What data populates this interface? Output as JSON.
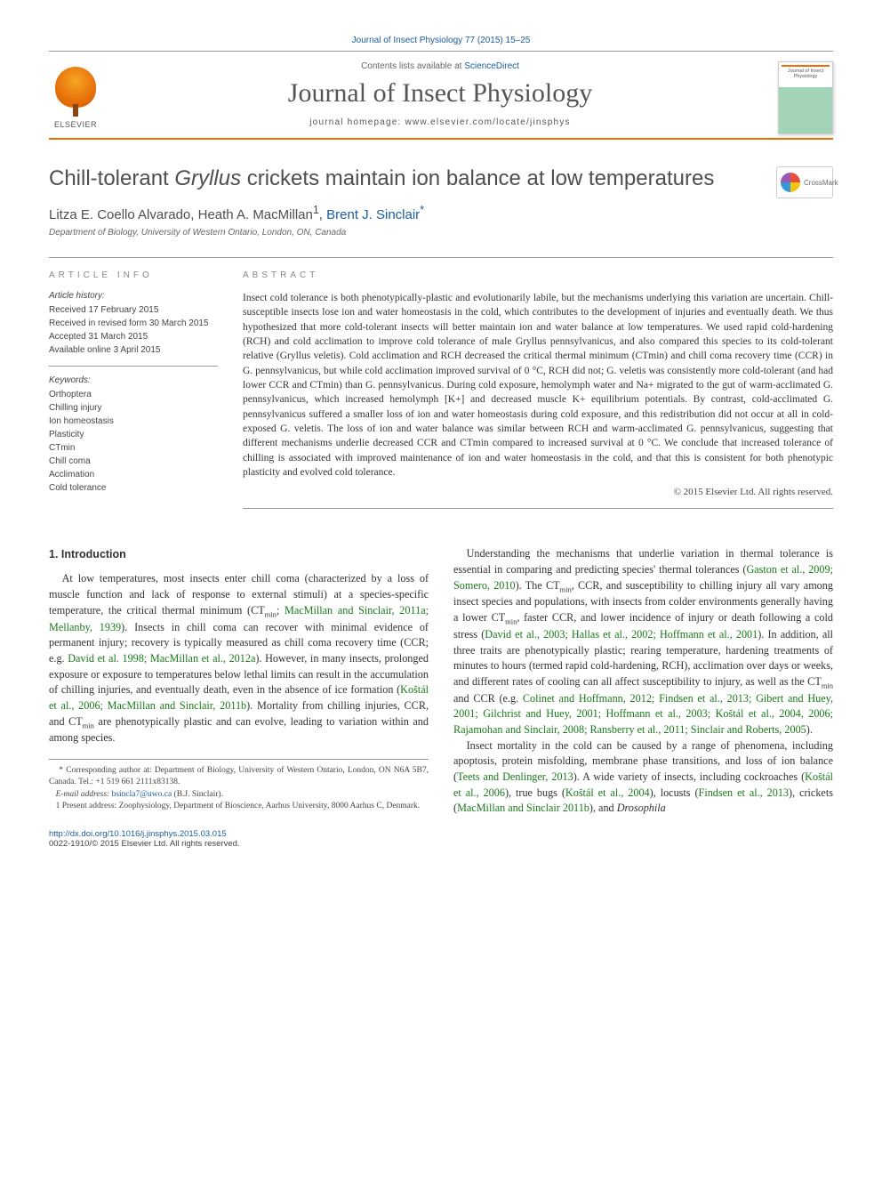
{
  "citation": "Journal of Insect Physiology 77 (2015) 15–25",
  "banner": {
    "contents_prefix": "Contents lists available at ",
    "sciencedirect": "ScienceDirect",
    "journal_name": "Journal of Insect Physiology",
    "homepage_prefix": "journal homepage: ",
    "homepage_url": "www.elsevier.com/locate/jinsphys",
    "publisher": "ELSEVIER",
    "cover_title": "Journal of Insect Physiology"
  },
  "crossmark": "CrossMark",
  "title": {
    "pre": "Chill-tolerant ",
    "italic": "Gryllus",
    "post": " crickets maintain ion balance at low temperatures"
  },
  "authors": [
    {
      "name": "Litza E. Coello Alvarado",
      "marks": ""
    },
    {
      "name": "Heath A. MacMillan",
      "marks": "1"
    },
    {
      "name": "Brent J. Sinclair",
      "marks": "*",
      "link": true
    }
  ],
  "affiliation": "Department of Biology, University of Western Ontario, London, ON, Canada",
  "article_info": {
    "heading": "ARTICLE INFO",
    "history_label": "Article history:",
    "history": [
      "Received 17 February 2015",
      "Received in revised form 30 March 2015",
      "Accepted 31 March 2015",
      "Available online 3 April 2015"
    ],
    "keywords_label": "Keywords:",
    "keywords": [
      "Orthoptera",
      "Chilling injury",
      "Ion homeostasis",
      "Plasticity",
      "CTmin",
      "Chill coma",
      "Acclimation",
      "Cold tolerance"
    ]
  },
  "abstract": {
    "heading": "ABSTRACT",
    "text": "Insect cold tolerance is both phenotypically-plastic and evolutionarily labile, but the mechanisms underlying this variation are uncertain. Chill-susceptible insects lose ion and water homeostasis in the cold, which contributes to the development of injuries and eventually death. We thus hypothesized that more cold-tolerant insects will better maintain ion and water balance at low temperatures. We used rapid cold-hardening (RCH) and cold acclimation to improve cold tolerance of male Gryllus pennsylvanicus, and also compared this species to its cold-tolerant relative (Gryllus veletis). Cold acclimation and RCH decreased the critical thermal minimum (CTmin) and chill coma recovery time (CCR) in G. pennsylvanicus, but while cold acclimation improved survival of 0 °C, RCH did not; G. veletis was consistently more cold-tolerant (and had lower CCR and CTmin) than G. pennsylvanicus. During cold exposure, hemolymph water and Na+ migrated to the gut of warm-acclimated G. pennsylvanicus, which increased hemolymph [K+] and decreased muscle K+ equilibrium potentials. By contrast, cold-acclimated G. pennsylvanicus suffered a smaller loss of ion and water homeostasis during cold exposure, and this redistribution did not occur at all in cold-exposed G. veletis. The loss of ion and water balance was similar between RCH and warm-acclimated G. pennsylvanicus, suggesting that different mechanisms underlie decreased CCR and CTmin compared to increased survival at 0 °C. We conclude that increased tolerance of chilling is associated with improved maintenance of ion and water homeostasis in the cold, and that this is consistent for both phenotypic plasticity and evolved cold tolerance.",
    "copyright": "© 2015 Elsevier Ltd. All rights reserved."
  },
  "section1": {
    "heading": "1. Introduction",
    "p1a": "At low temperatures, most insects enter chill coma (characterized by a loss of muscle function and lack of response to external stimuli) at a species-specific temperature, the critical thermal minimum (CT",
    "p1b": "; ",
    "c1": "MacMillan and Sinclair, 2011a; Mellanby, 1939",
    "p1c": "). Insects in chill coma can recover with minimal evidence of permanent injury; recovery is typically measured as chill coma recovery time (CCR; e.g. ",
    "c2": "David et al. 1998; MacMillan et al., 2012a",
    "p1d": "). However, in many insects, prolonged exposure or exposure to temperatures below lethal limits can result in the accumulation of chilling injuries, and eventually death, even in the absence of ice formation (",
    "c3": "Koštál et al., 2006; MacMillan and Sinclair, 2011b",
    "p1e": "). Mortality from chilling injuries, CCR, and CT",
    "p1f": " are phenotypically plastic and can evolve, leading to variation within and among species.",
    "p2a": "Understanding the mechanisms that underlie variation in thermal tolerance is essential in comparing and predicting species' thermal tolerances (",
    "c4": "Gaston et al., 2009; Somero, 2010",
    "p2b": "). The CT",
    "p2c": ", CCR, and susceptibility to chilling injury all vary among insect species and populations, with insects from colder environments generally having a lower CT",
    "p2d": ", faster CCR, and lower incidence of injury or death following a cold stress (",
    "c5": "David et al., 2003; Hallas et al., 2002; Hoffmann et al., 2001",
    "p2e": "). In addition, all three traits are phenotypically plastic; rearing temperature, hardening treatments of minutes to hours (termed rapid cold-hardening, RCH), acclimation over days or weeks, and different rates of cooling can all affect susceptibility to injury, as well as the CT",
    "p2f": " and CCR (e.g. ",
    "c6": "Colinet and Hoffmann, 2012; Findsen et al., 2013; Gibert and Huey, 2001; Gilchrist and Huey, 2001; Hoffmann et al., 2003; Koštál et al., 2004, 2006; Rajamohan and Sinclair, 2008; Ransberry et al., 2011; Sinclair and Roberts, 2005",
    "p2g": ").",
    "p3a": "Insect mortality in the cold can be caused by a range of phenomena, including apoptosis, protein misfolding, membrane phase transitions, and loss of ion balance (",
    "c7": "Teets and Denlinger, 2013",
    "p3b": "). A wide variety of insects, including cockroaches (",
    "c8": "Koštál et al., 2006",
    "p3c": "), true bugs (",
    "c9": "Koštál et al., 2004",
    "p3d": "), locusts (",
    "c10": "Findsen et al., 2013",
    "p3e": "), crickets (",
    "c11": "MacMillan and Sinclair 2011b",
    "p3f": "), and ",
    "p3g": "Drosophila"
  },
  "footnotes": {
    "corr": "* Corresponding author at: Department of Biology, University of Western Ontario, London, ON N6A 5B7, Canada. Tel.: +1 519 661 2111x83138.",
    "email_label": "E-mail address: ",
    "email": "bsincla7@uwo.ca",
    "email_who": " (B.J. Sinclair).",
    "present": "1 Present address: Zoophysiology, Department of Bioscience, Aarhus University, 8000 Aarhus C, Denmark."
  },
  "footer": {
    "doi": "http://dx.doi.org/10.1016/j.jinsphys.2015.03.015",
    "issn_line": "0022-1910/© 2015 Elsevier Ltd. All rights reserved."
  },
  "colors": {
    "link_blue": "#1a5d9e",
    "cite_green": "#1a7a1a",
    "accent_orange": "#e8700a",
    "body_text": "#333333",
    "grey_heading": "#4e4e4e"
  }
}
